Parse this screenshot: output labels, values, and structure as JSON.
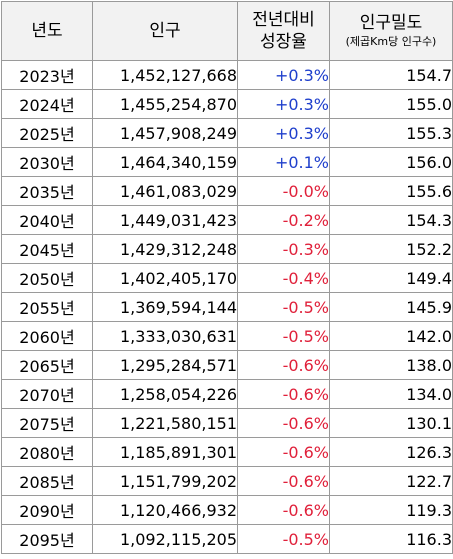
{
  "header": {
    "year": "년도",
    "population": "인구",
    "growth_line1": "전년대비",
    "growth_line2": "성장율",
    "density_line1": "인구밀도",
    "density_line2": "(제곱Km당 인구수)"
  },
  "rows": [
    {
      "year": "2023년",
      "population": "1,452,127,668",
      "growth": "+0.3%",
      "density": "154.7"
    },
    {
      "year": "2024년",
      "population": "1,455,254,870",
      "growth": "+0.3%",
      "density": "155.0"
    },
    {
      "year": "2025년",
      "population": "1,457,908,249",
      "growth": "+0.3%",
      "density": "155.3"
    },
    {
      "year": "2030년",
      "population": "1,464,340,159",
      "growth": "+0.1%",
      "density": "156.0"
    },
    {
      "year": "2035년",
      "population": "1,461,083,029",
      "growth": "-0.0%",
      "density": "155.6"
    },
    {
      "year": "2040년",
      "population": "1,449,031,423",
      "growth": "-0.2%",
      "density": "154.3"
    },
    {
      "year": "2045년",
      "population": "1,429,312,248",
      "growth": "-0.3%",
      "density": "152.2"
    },
    {
      "year": "2050년",
      "population": "1,402,405,170",
      "growth": "-0.4%",
      "density": "149.4"
    },
    {
      "year": "2055년",
      "population": "1,369,594,144",
      "growth": "-0.5%",
      "density": "145.9"
    },
    {
      "year": "2060년",
      "population": "1,333,030,631",
      "growth": "-0.5%",
      "density": "142.0"
    },
    {
      "year": "2065년",
      "population": "1,295,284,571",
      "growth": "-0.6%",
      "density": "138.0"
    },
    {
      "year": "2070년",
      "population": "1,258,054,226",
      "growth": "-0.6%",
      "density": "134.0"
    },
    {
      "year": "2075년",
      "population": "1,221,580,151",
      "growth": "-0.6%",
      "density": "130.1"
    },
    {
      "year": "2080년",
      "population": "1,185,891,301",
      "growth": "-0.6%",
      "density": "126.3"
    },
    {
      "year": "2085년",
      "population": "1,151,799,202",
      "growth": "-0.6%",
      "density": "122.7"
    },
    {
      "year": "2090년",
      "population": "1,120,466,932",
      "growth": "-0.6%",
      "density": "119.3"
    },
    {
      "year": "2095년",
      "population": "1,092,115,205",
      "growth": "-0.5%",
      "density": "116.3"
    }
  ],
  "colors": {
    "positive": "#1f3fcc",
    "negative": "#e0203a",
    "header_bg": "#f2f2f2",
    "border": "#9a9a9a"
  }
}
